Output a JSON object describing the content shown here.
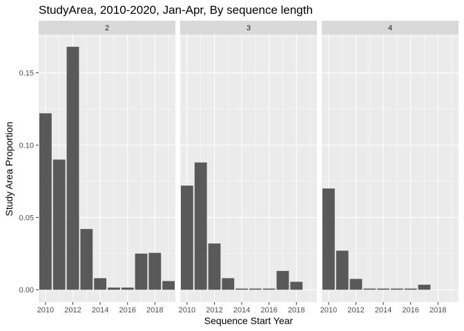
{
  "chart_data": {
    "type": "bar",
    "title": "StudyArea, 2010-2020, Jan-Apr, By sequence length",
    "xlabel": "Sequence Start Year",
    "ylabel": "Study Area Proportion",
    "x_ticks": [
      2010,
      2012,
      2014,
      2016,
      2018
    ],
    "y_ticks": [
      0.0,
      0.05,
      0.1,
      0.15
    ],
    "y_tick_labels": [
      "0.00",
      "0.05",
      "0.10",
      "0.15"
    ],
    "xlim": [
      2009.5,
      2019.5
    ],
    "ylim": [
      -0.0085,
      0.1765
    ],
    "grid": true,
    "bar_color": "#595959",
    "panel_bg": "#ebebeb",
    "strip_bg": "#d9d9d9",
    "grid_color": "#ffffff",
    "facets": [
      {
        "label": "2",
        "x": [
          2010,
          2011,
          2012,
          2013,
          2014,
          2015,
          2016,
          2017,
          2018,
          2019
        ],
        "values": [
          0.122,
          0.09,
          0.168,
          0.042,
          0.008,
          0.0015,
          0.0015,
          0.025,
          0.0255,
          0.006
        ]
      },
      {
        "label": "3",
        "x": [
          2010,
          2011,
          2012,
          2013,
          2014,
          2015,
          2016,
          2017,
          2018
        ],
        "values": [
          0.072,
          0.088,
          0.032,
          0.008,
          0.0008,
          0.0008,
          0.0008,
          0.013,
          0.0055
        ]
      },
      {
        "label": "4",
        "x": [
          2010,
          2011,
          2012,
          2013,
          2014,
          2015,
          2016,
          2017
        ],
        "values": [
          0.07,
          0.027,
          0.0075,
          0.0008,
          0.0008,
          0.0008,
          0.0008,
          0.0035
        ]
      }
    ]
  }
}
